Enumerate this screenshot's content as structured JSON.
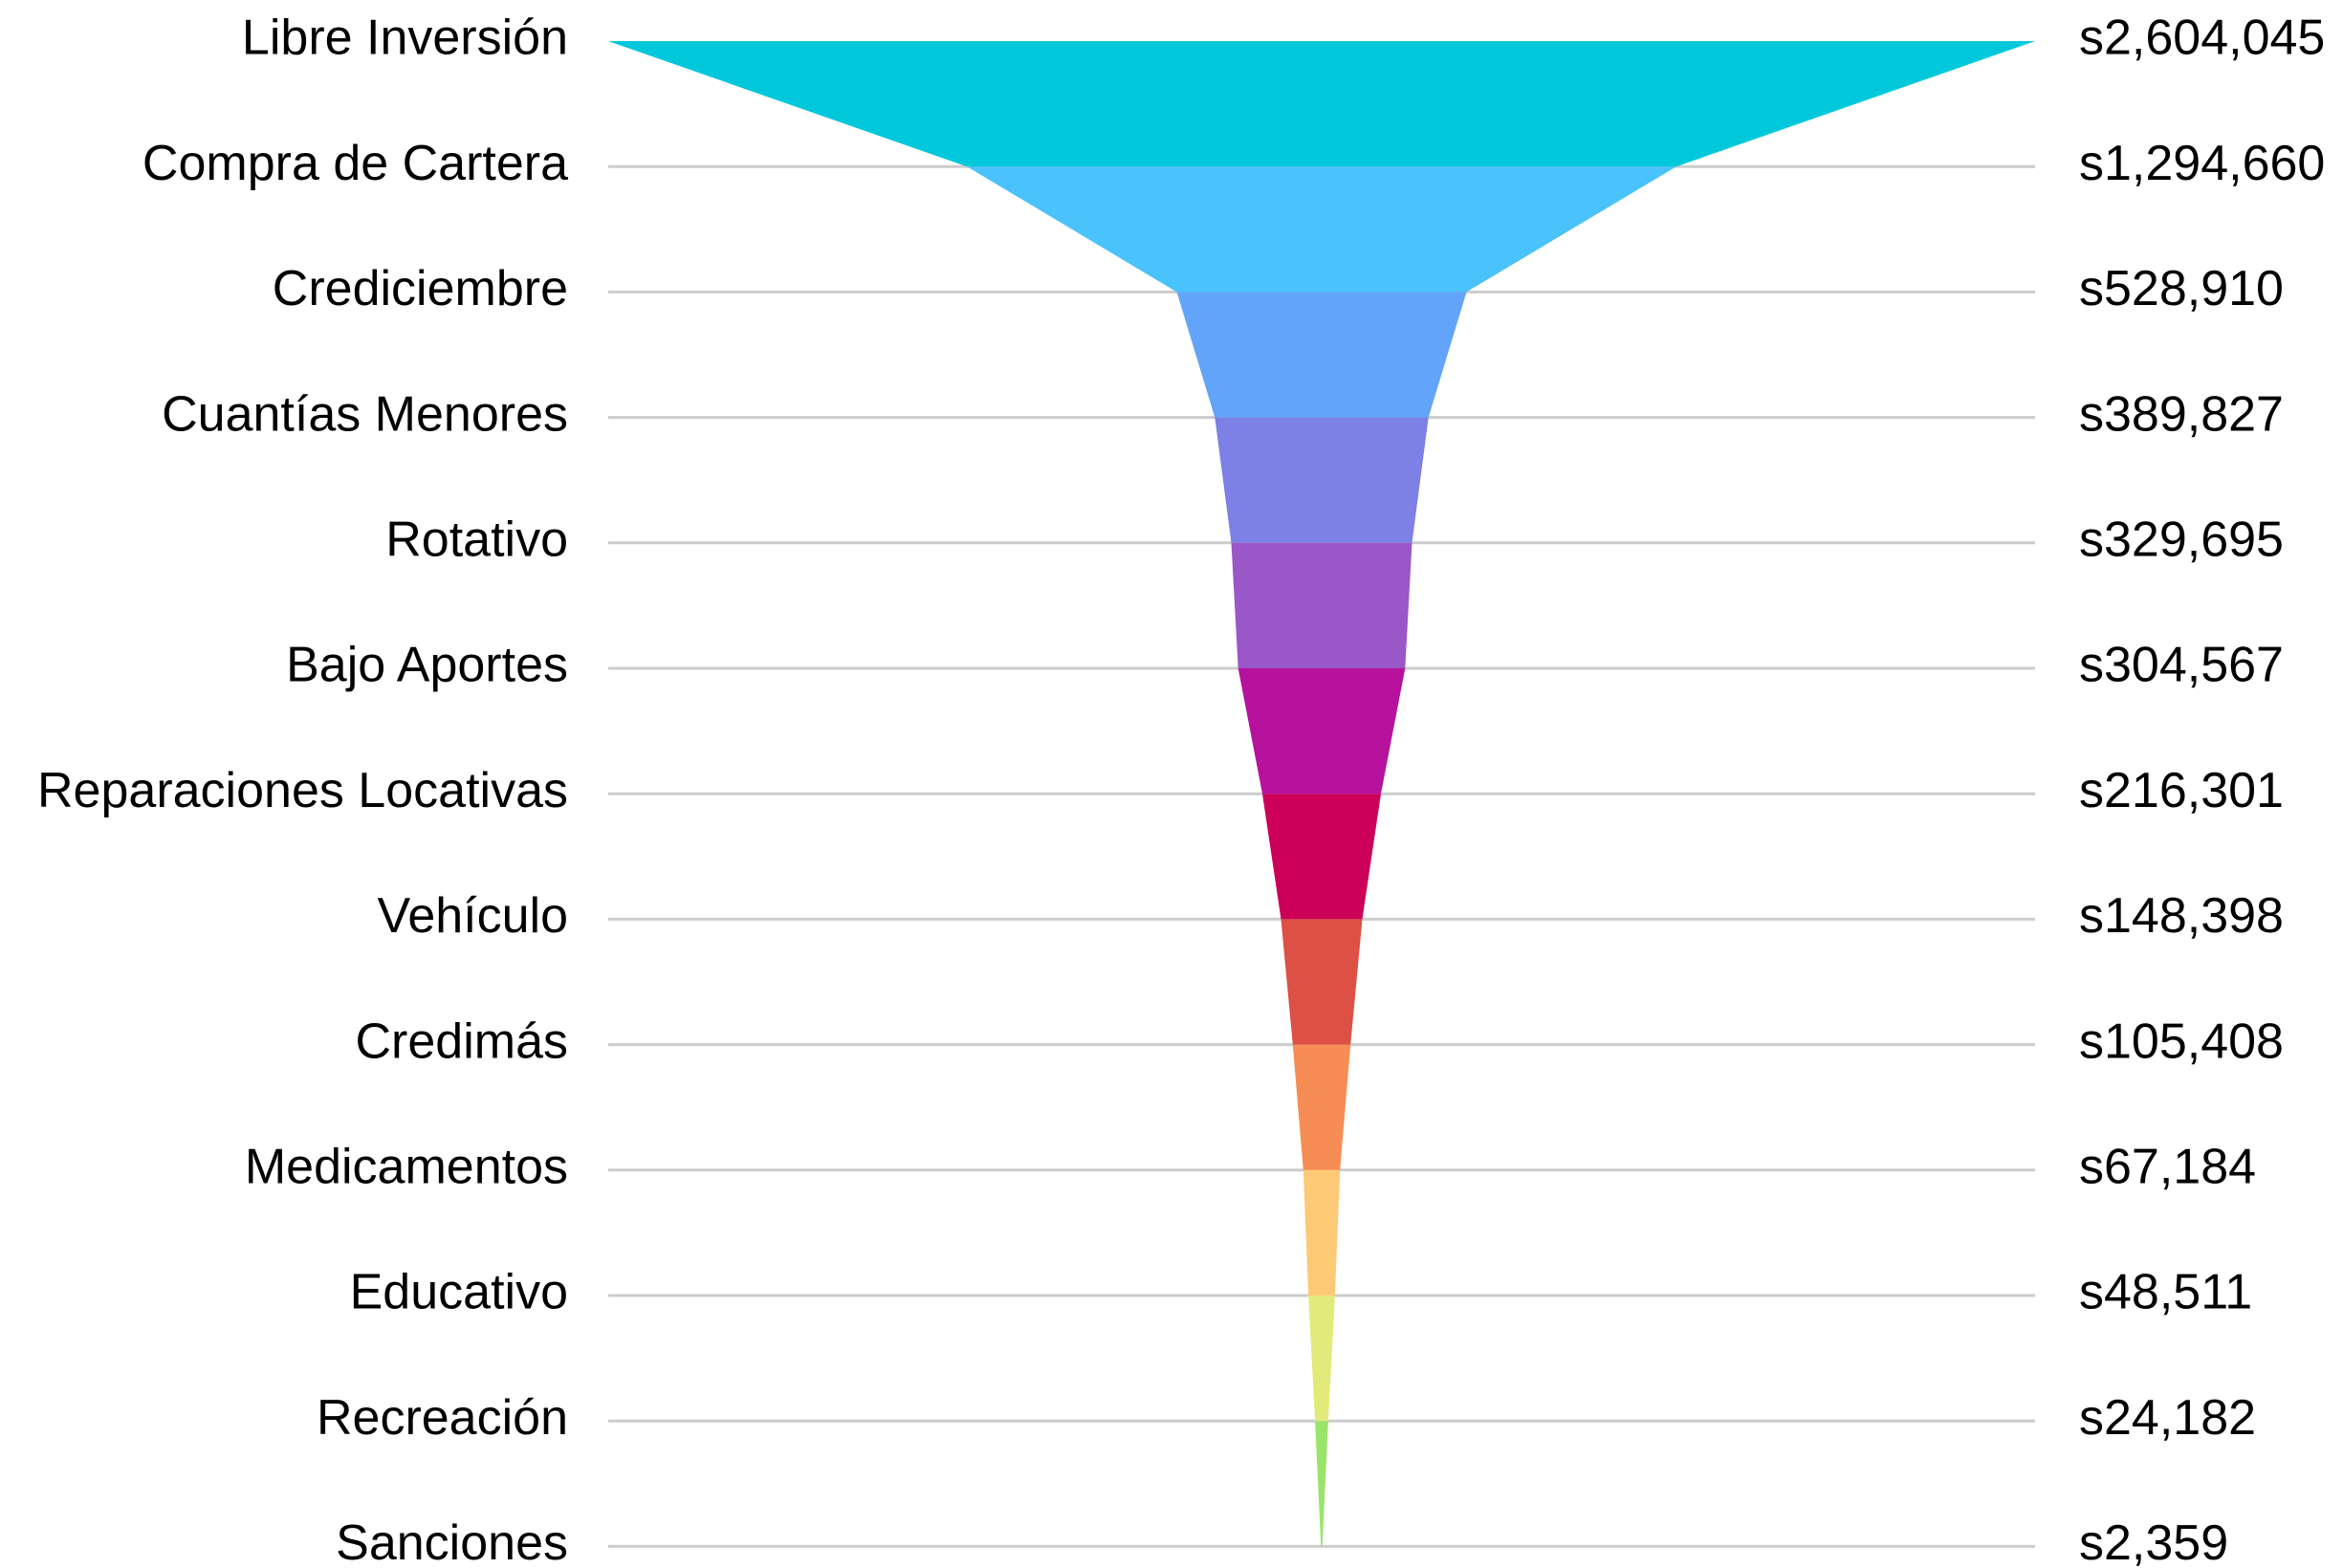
{
  "chart_data": {
    "type": "funnel",
    "title": "",
    "grid": true,
    "value_prefix": "s",
    "categories": [
      "Libre Inversión",
      "Compra de Cartera",
      "Crediciembre",
      "Cuantías Menores",
      "Rotativo",
      "Bajo Aportes",
      "Reparaciones Locativas",
      "Vehículo",
      "Credimás",
      "Medicamentos",
      "Educativo",
      "Recreación",
      "Sanciones"
    ],
    "values": [
      2604045,
      1294660,
      528910,
      389827,
      329695,
      304567,
      216301,
      148398,
      105408,
      67184,
      48511,
      24182,
      2359
    ],
    "value_labels": [
      "s2,604,045",
      "s1,294,660",
      "s528,910",
      "s389,827",
      "s329,695",
      "s304,567",
      "s216,301",
      "s148,398",
      "s105,408",
      "s67,184",
      "s48,511",
      "s24,182",
      "s2,359"
    ],
    "colors": [
      "#00c8da",
      "#4ac2fc",
      "#62a4f9",
      "#7d80e5",
      "#9957c8",
      "#b6129e",
      "#cc0059",
      "#dc5045",
      "#f58d54",
      "#fdc976",
      "#e2eb7a",
      "#9be46b",
      "#9be46b"
    ]
  }
}
